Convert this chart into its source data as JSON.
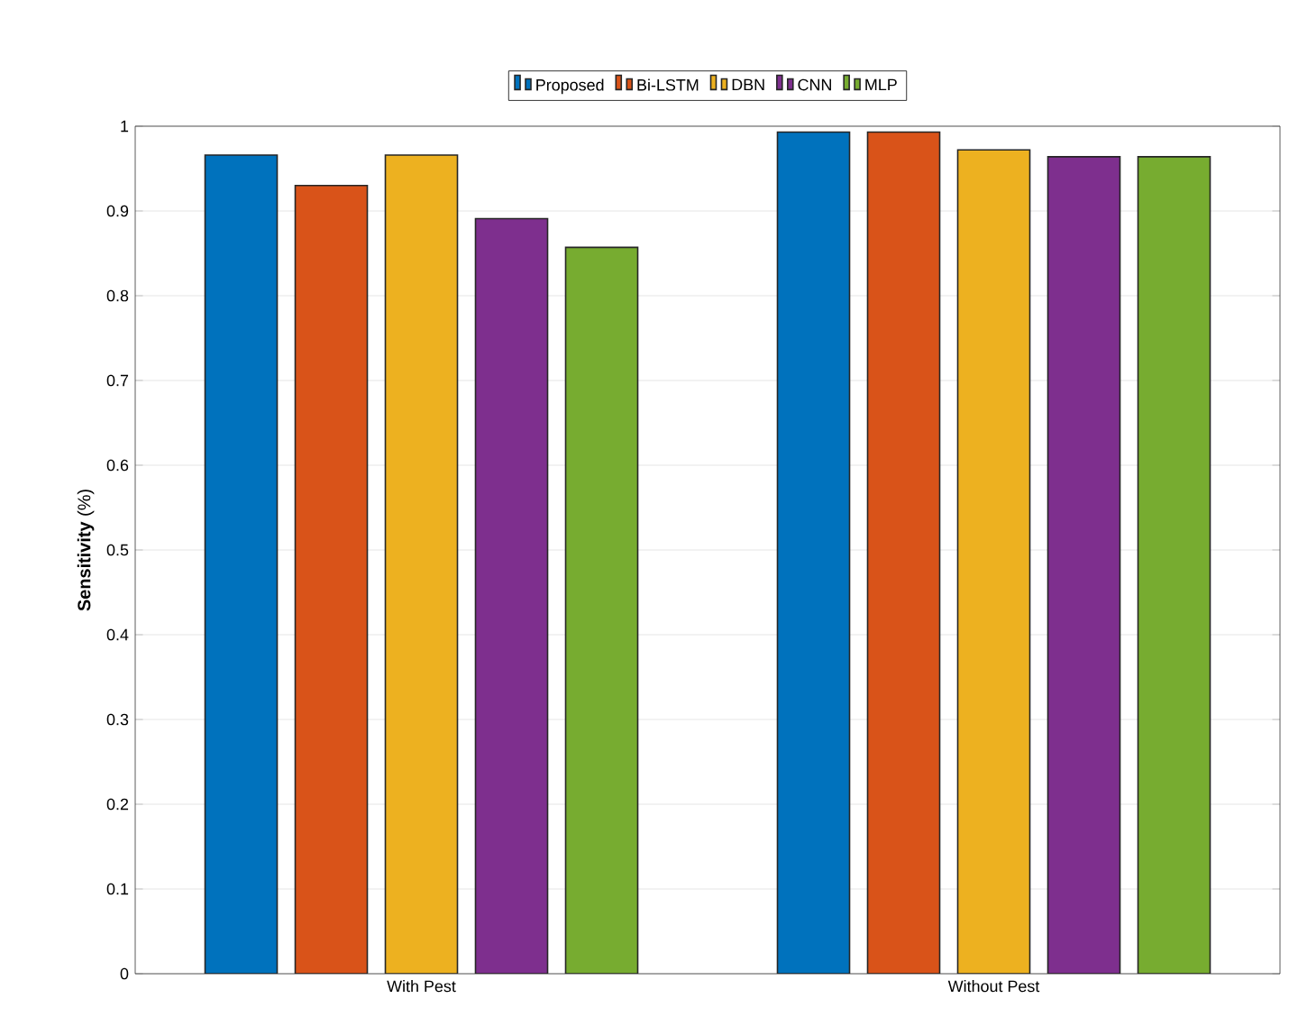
{
  "chart_data": {
    "type": "bar",
    "ylabel": "**Sensitivity** (%)",
    "categories": [
      "With Pest",
      "Without Pest"
    ],
    "series": [
      {
        "name": "Proposed",
        "color": "#0072bd",
        "values": [
          0.966,
          0.993
        ]
      },
      {
        "name": "Bi-LSTM",
        "color": "#d95319",
        "values": [
          0.93,
          0.993
        ]
      },
      {
        "name": "DBN",
        "color": "#edb120",
        "values": [
          0.966,
          0.972
        ]
      },
      {
        "name": "CNN",
        "color": "#7e2f8e",
        "values": [
          0.891,
          0.964
        ]
      },
      {
        "name": "MLP",
        "color": "#77ac30",
        "values": [
          0.857,
          0.964
        ]
      }
    ],
    "ylim": [
      0,
      1
    ],
    "yticks": [
      0,
      0.1,
      0.2,
      0.3,
      0.4,
      0.5,
      0.6,
      0.7,
      0.8,
      0.9,
      1
    ],
    "grid": "y",
    "legend": "top"
  }
}
